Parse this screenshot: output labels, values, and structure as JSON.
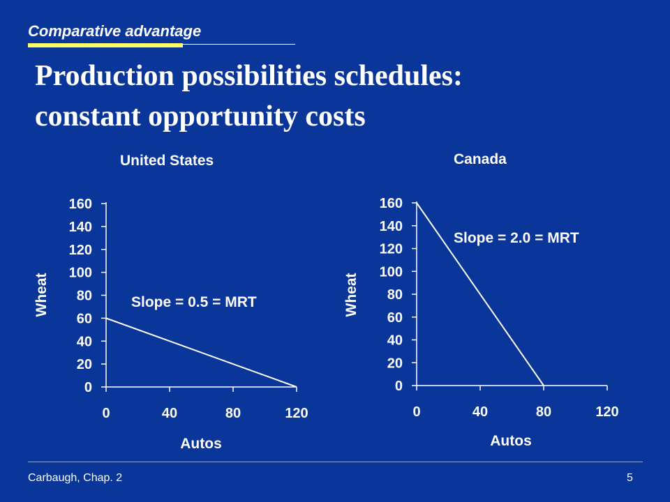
{
  "slide": {
    "section_label": "Comparative advantage",
    "title_line1": "Production possibilities schedules:",
    "title_line2": "constant opportunity costs",
    "footer_left": "Carbaugh, Chap. 2",
    "page_number": "5"
  },
  "colors": {
    "background": "#0A3599",
    "accent": "#FFFF66",
    "text": "#FFFFFF",
    "line": "#FFFFFF"
  },
  "chart_data": [
    {
      "type": "line",
      "title": "United States",
      "xlabel": "Autos",
      "ylabel": "Wheat",
      "x_ticks": [
        "0",
        "40",
        "80",
        "120"
      ],
      "y_ticks": [
        "0",
        "20",
        "40",
        "60",
        "80",
        "100",
        "120",
        "140",
        "160"
      ],
      "xlim": [
        0,
        120
      ],
      "ylim": [
        0,
        160
      ],
      "series": [
        {
          "x": [
            0,
            120
          ],
          "y": [
            60,
            0
          ]
        }
      ],
      "annotation": "Slope = 0.5 = MRT"
    },
    {
      "type": "line",
      "title": "Canada",
      "xlabel": "Autos",
      "ylabel": "Wheat",
      "x_ticks": [
        "0",
        "40",
        "80",
        "120"
      ],
      "y_ticks": [
        "0",
        "20",
        "40",
        "60",
        "80",
        "100",
        "120",
        "140",
        "160"
      ],
      "xlim": [
        0,
        120
      ],
      "ylim": [
        0,
        160
      ],
      "series": [
        {
          "x": [
            0,
            80
          ],
          "y": [
            160,
            0
          ]
        }
      ],
      "annotation": "Slope = 2.0 = MRT"
    }
  ]
}
